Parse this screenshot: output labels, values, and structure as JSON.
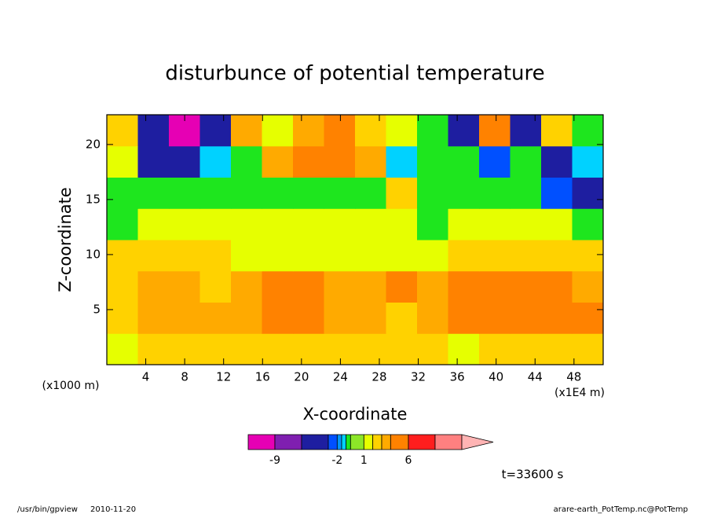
{
  "chart_data": {
    "type": "contour",
    "title": "disturbunce of potential temperature",
    "x_label": "X-coordinate",
    "y_label": "Z-coordinate",
    "y_unit": "(x1000 m)",
    "x_unit": "(x1E4 m)",
    "time_label": "t=33600 s",
    "footer_left": [
      "/usr/bin/gpview",
      "2010-11-20"
    ],
    "footer_right": "arare-earth_PotTemp.nc@PotTemp",
    "xlim": [
      0,
      51
    ],
    "ylim": [
      0,
      22.7
    ],
    "xticks": [
      4,
      8,
      12,
      16,
      20,
      24,
      28,
      32,
      36,
      40,
      44,
      48
    ],
    "yticks": [
      5,
      10,
      15,
      20
    ],
    "z": [
      [
        1.5,
        2.5,
        2.5,
        2.5,
        2.5,
        2.5,
        2.5,
        2.5,
        2.5,
        2.5,
        2.5,
        1.5,
        2.5,
        2.5,
        2.5,
        2.5
      ],
      [
        2.5,
        3.5,
        3.5,
        3.5,
        3.5,
        5,
        5,
        3.5,
        3.5,
        2.5,
        3.5,
        5,
        5,
        5,
        5,
        5
      ],
      [
        2.5,
        3.5,
        3.5,
        2.5,
        3.5,
        5,
        5,
        3.5,
        3.5,
        5,
        3.5,
        5,
        5,
        5,
        5,
        3.5
      ],
      [
        2.5,
        2.5,
        2.5,
        2.5,
        1.5,
        1.5,
        1.5,
        1.5,
        1.5,
        1.5,
        1.5,
        2.5,
        2.5,
        2.5,
        2.5,
        2.5
      ],
      [
        -0.7,
        1.5,
        1.5,
        1.5,
        1.5,
        1.5,
        1.5,
        1.5,
        1.5,
        1.5,
        -0.7,
        1.5,
        1.5,
        1.5,
        1.5,
        -0.7
      ],
      [
        -0.7,
        -0.7,
        -0.7,
        -0.7,
        -0.7,
        -0.7,
        -0.7,
        -0.7,
        -0.7,
        2.5,
        -0.7,
        -0.7,
        -0.7,
        -0.7,
        -2.5,
        -4
      ],
      [
        1.5,
        -4,
        -4,
        -1.2,
        -0.7,
        3.5,
        5,
        5,
        3.5,
        -1.2,
        -0.7,
        -0.7,
        -2.5,
        -0.7,
        -4,
        -1.2
      ],
      [
        2.5,
        -4,
        -10,
        -4,
        3.5,
        1.5,
        3.5,
        5,
        2.5,
        1.5,
        -0.7,
        -4,
        5,
        -4,
        2.5,
        -0.7
      ]
    ],
    "colorbar": {
      "levels": [
        -12,
        -9,
        -6,
        -3,
        -2,
        -1.5,
        -1,
        -0.5,
        1,
        2,
        3,
        4,
        6,
        9,
        12
      ],
      "colors": [
        "#e600b4",
        "#7f1fb0",
        "#1e1ea0",
        "#0050ff",
        "#0096ff",
        "#00d2ff",
        "#1ee61e",
        "#8ce628",
        "#e6ff00",
        "#ffd200",
        "#ffaa00",
        "#ff8200",
        "#ff1e1e",
        "#ff8080"
      ],
      "over_color": "#ffb4b4",
      "ticks": [
        -9,
        -2,
        1,
        6
      ]
    }
  }
}
